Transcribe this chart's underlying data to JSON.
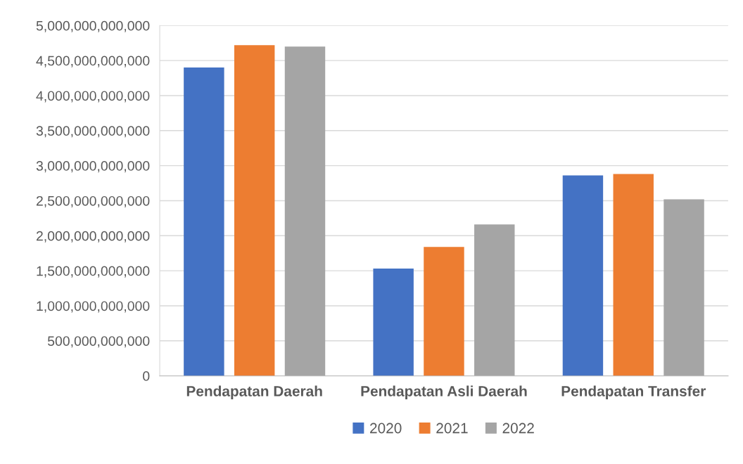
{
  "chart_data": {
    "type": "bar",
    "categories": [
      "Pendapatan Daerah",
      "Pendapatan Asli Daerah",
      "Pendapatan Transfer"
    ],
    "series": [
      {
        "name": "2020",
        "color": "#4472c4",
        "values": [
          4400000000000,
          1530000000000,
          2860000000000
        ]
      },
      {
        "name": "2021",
        "color": "#ed7d31",
        "values": [
          4720000000000,
          1840000000000,
          2880000000000
        ]
      },
      {
        "name": "2022",
        "color": "#a5a5a5",
        "values": [
          4700000000000,
          2160000000000,
          2520000000000
        ]
      }
    ],
    "ylim": [
      0,
      5000000000000
    ],
    "yticks": [
      0,
      {
        "value": 500000000000,
        "label": "500,000,000,000"
      },
      {
        "value": 1000000000000,
        "label": "1,000,000,000,000"
      },
      {
        "value": 1500000000000,
        "label": "1,500,000,000,000"
      },
      {
        "value": 2000000000000,
        "label": "2,000,000,000,000"
      },
      {
        "value": 2500000000000,
        "label": "2,500,000,000,000"
      },
      {
        "value": 3000000000000,
        "label": "3,000,000,000,000"
      },
      {
        "value": 3500000000000,
        "label": "3,500,000,000,000"
      },
      {
        "value": 4000000000000,
        "label": "4,000,000,000,000"
      },
      {
        "value": 4500000000000,
        "label": "4,500,000,000,000"
      },
      {
        "value": 5000000000000,
        "label": "5,000,000,000,000"
      }
    ],
    "grid": "y",
    "legend": "bottom"
  }
}
